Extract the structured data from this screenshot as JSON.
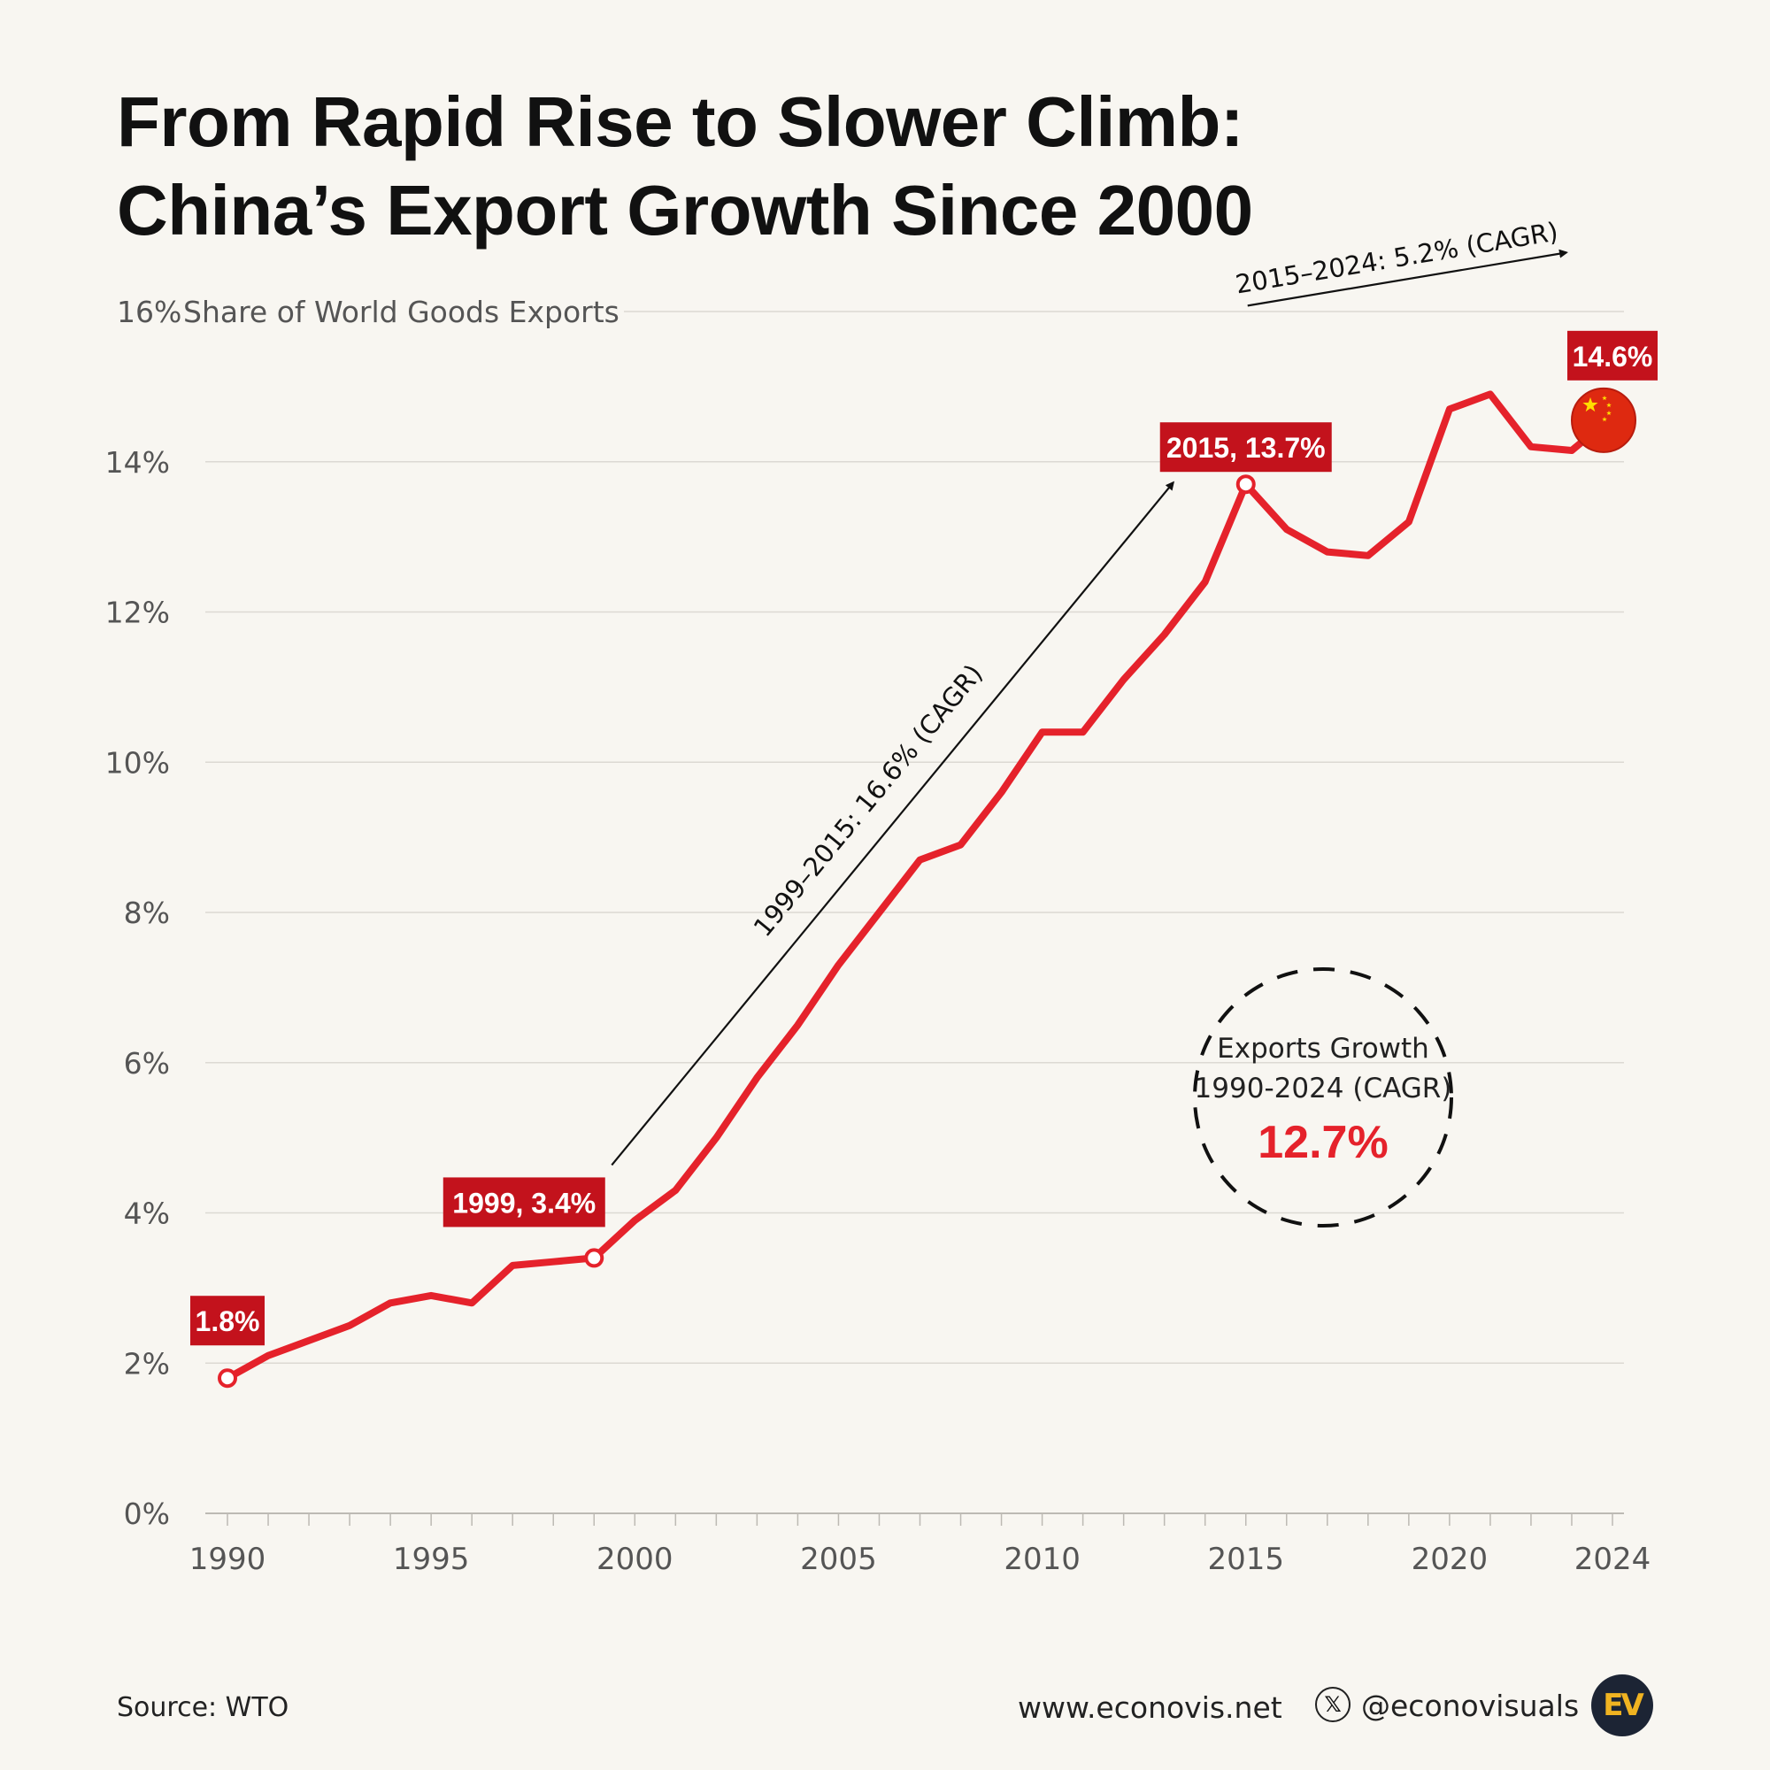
{
  "title": {
    "line1": "From Rapid Rise to Slower Climb:",
    "line2": "China’s Export Growth Since 2000"
  },
  "chart_data": {
    "type": "line",
    "title": "From Rapid Rise to Slower Climb: China’s Export Growth Since 2000",
    "ylabel": "Share of World Goods Exports",
    "xlabel": "",
    "ylim": [
      0,
      16
    ],
    "xlim": [
      1990,
      2024
    ],
    "grid": true,
    "y_ticks": [
      {
        "value": 0,
        "label": "0%"
      },
      {
        "value": 2,
        "label": "2%"
      },
      {
        "value": 4,
        "label": "4%"
      },
      {
        "value": 6,
        "label": "6%"
      },
      {
        "value": 8,
        "label": "8%"
      },
      {
        "value": 10,
        "label": "10%"
      },
      {
        "value": 12,
        "label": "12%"
      },
      {
        "value": 14,
        "label": "14%"
      },
      {
        "value": 16,
        "label": "16%"
      }
    ],
    "x_ticks": [
      {
        "value": 1990,
        "label": "1990"
      },
      {
        "value": 1995,
        "label": "1995"
      },
      {
        "value": 2000,
        "label": "2000"
      },
      {
        "value": 2005,
        "label": "2005"
      },
      {
        "value": 2010,
        "label": "2010"
      },
      {
        "value": 2015,
        "label": "2015"
      },
      {
        "value": 2020,
        "label": "2020"
      },
      {
        "value": 2024,
        "label": "2024"
      }
    ],
    "series": [
      {
        "name": "China share of world goods exports (%)",
        "color": "#e5222b",
        "x": [
          1990,
          1991,
          1992,
          1993,
          1994,
          1995,
          1996,
          1997,
          1998,
          1999,
          2000,
          2001,
          2002,
          2003,
          2004,
          2005,
          2006,
          2007,
          2008,
          2009,
          2010,
          2011,
          2012,
          2013,
          2014,
          2015,
          2016,
          2017,
          2018,
          2019,
          2020,
          2021,
          2022,
          2023,
          2024
        ],
        "values": [
          1.8,
          2.1,
          2.3,
          2.5,
          2.8,
          2.9,
          2.8,
          3.3,
          3.35,
          3.4,
          3.9,
          4.3,
          5.0,
          5.8,
          6.5,
          7.3,
          8.0,
          8.7,
          8.9,
          9.6,
          10.4,
          10.4,
          11.1,
          11.7,
          12.4,
          13.7,
          13.1,
          12.8,
          12.75,
          13.2,
          14.7,
          14.9,
          14.2,
          14.15,
          14.6
        ]
      }
    ],
    "highlight_points": [
      {
        "x": 1990,
        "value": 1.8,
        "label": "1.8%"
      },
      {
        "x": 1999,
        "value": 3.4,
        "label": "1999, 3.4%"
      },
      {
        "x": 2015,
        "value": 13.7,
        "label": "2015, 13.7%"
      },
      {
        "x": 2024,
        "value": 14.6,
        "label": "14.6%"
      }
    ],
    "annotations": [
      {
        "text": "1999–2015: 16.6% (CAGR)",
        "from_year": 1999,
        "to_year": 2015
      },
      {
        "text": "2015–2024: 5.2% (CAGR)",
        "from_year": 2015,
        "to_year": 2024
      }
    ],
    "callout": {
      "line1": "Exports Growth",
      "line2": "1990-2024 (CAGR)",
      "value": "12.7%"
    },
    "colors": {
      "line": "#e5222b",
      "label_bg": "#c3121c",
      "grid": "#dcd9d3",
      "axis_text": "#555555",
      "flag_red": "#de2910",
      "flag_star": "#ffde00"
    }
  },
  "footer": {
    "source": "Source: WTO",
    "website": "www.econovis.net",
    "x_icon": "𝕏",
    "handle": "@econovisuals",
    "logo": "EV"
  }
}
